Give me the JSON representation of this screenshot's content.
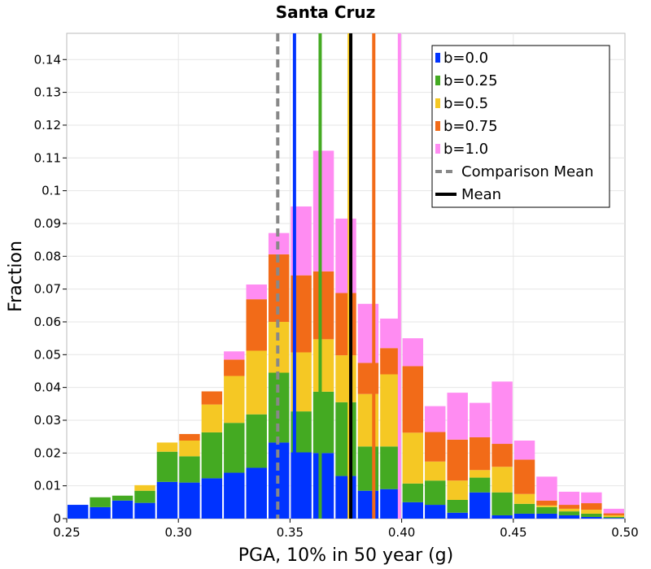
{
  "chart_data": {
    "type": "bar",
    "stacked": true,
    "title": "Santa Cruz",
    "xlabel": "PGA, 10% in 50 year (g)",
    "ylabel": "Fraction",
    "xlim": [
      0.25,
      0.5
    ],
    "ylim": [
      0,
      0.148
    ],
    "grid": true,
    "legend_position": "top-right",
    "x_ticks": [
      0.25,
      0.3,
      0.35,
      0.4,
      0.45,
      0.5
    ],
    "x_tick_labels": [
      "0.25",
      "0.30",
      "0.35",
      "0.40",
      "0.45",
      "0.50"
    ],
    "y_ticks": [
      0,
      0.01,
      0.02,
      0.03,
      0.04,
      0.05,
      0.06,
      0.07,
      0.08,
      0.09,
      0.1,
      0.11,
      0.12,
      0.13,
      0.14
    ],
    "y_tick_labels": [
      "0",
      "0.01",
      "0.02",
      "0.03",
      "0.04",
      "0.05",
      "0.06",
      "0.07",
      "0.08",
      "0.09",
      "0.1",
      "0.11",
      "0.12",
      "0.13",
      "0.14"
    ],
    "bin_width": 0.01,
    "bin_starts": [
      0.25,
      0.26,
      0.27,
      0.28,
      0.29,
      0.3,
      0.31,
      0.32,
      0.33,
      0.34,
      0.35,
      0.36,
      0.37,
      0.38,
      0.39,
      0.4,
      0.41,
      0.42,
      0.43,
      0.44,
      0.45,
      0.46,
      0.47,
      0.48,
      0.49
    ],
    "series": [
      {
        "name": "b=0.0",
        "color": "#0033ff",
        "values": [
          0.0042,
          0.0035,
          0.0055,
          0.0048,
          0.0112,
          0.011,
          0.0123,
          0.014,
          0.0155,
          0.0232,
          0.0202,
          0.02,
          0.013,
          0.0085,
          0.009,
          0.005,
          0.0042,
          0.0018,
          0.008,
          0.001,
          0.0015,
          0.0015,
          0.001,
          0.0005,
          0.0002
        ]
      },
      {
        "name": "b=0.25",
        "color": "#44aa22",
        "values": [
          0.0,
          0.003,
          0.0015,
          0.0037,
          0.0092,
          0.008,
          0.014,
          0.0152,
          0.0163,
          0.0213,
          0.0125,
          0.0187,
          0.0225,
          0.0135,
          0.013,
          0.0057,
          0.0074,
          0.0039,
          0.0045,
          0.007,
          0.003,
          0.002,
          0.0012,
          0.001,
          0.0003
        ]
      },
      {
        "name": "b=0.5",
        "color": "#f5c824",
        "values": [
          0.0,
          0.0,
          0.0,
          0.0017,
          0.0028,
          0.0048,
          0.0085,
          0.0143,
          0.0194,
          0.0155,
          0.018,
          0.016,
          0.0143,
          0.016,
          0.022,
          0.0155,
          0.0058,
          0.0059,
          0.0023,
          0.0078,
          0.003,
          0.0005,
          0.0008,
          0.0012,
          0.0005
        ]
      },
      {
        "name": "b=0.75",
        "color": "#f26b18",
        "values": [
          0.0,
          0.0,
          0.0,
          0.0,
          0.0,
          0.002,
          0.004,
          0.005,
          0.0157,
          0.0206,
          0.0235,
          0.0207,
          0.019,
          0.0095,
          0.008,
          0.0203,
          0.009,
          0.0125,
          0.01,
          0.007,
          0.0105,
          0.0015,
          0.0012,
          0.002,
          0.0006
        ]
      },
      {
        "name": "b=1.0",
        "color": "#ff8cf2",
        "values": [
          0.0,
          0.0,
          0.0,
          0.0,
          0.0,
          0.0,
          0.0,
          0.0025,
          0.0045,
          0.0065,
          0.021,
          0.0368,
          0.0227,
          0.018,
          0.009,
          0.0085,
          0.0079,
          0.0143,
          0.0105,
          0.019,
          0.0058,
          0.0073,
          0.004,
          0.0033,
          0.0014
        ]
      }
    ],
    "vertical_lines": [
      {
        "name": "comparison-mean-line",
        "label": "Comparison Mean",
        "x": 0.3445,
        "color": "#888888",
        "style": "dashed"
      },
      {
        "name": "mean-line-b0",
        "x": 0.352,
        "color": "#0033ff",
        "style": "solid"
      },
      {
        "name": "mean-line-b025",
        "x": 0.3635,
        "color": "#44aa22",
        "style": "solid"
      },
      {
        "name": "mean-line-b05",
        "x": 0.3765,
        "color": "#f5c824",
        "style": "solid"
      },
      {
        "name": "mean-line-b075",
        "x": 0.3875,
        "color": "#f26b18",
        "style": "solid"
      },
      {
        "name": "mean-line-b1",
        "x": 0.399,
        "color": "#ff8cf2",
        "style": "solid"
      },
      {
        "name": "mean-line",
        "label": "Mean",
        "x": 0.3772,
        "color": "#000000",
        "style": "solid"
      }
    ],
    "legend": [
      {
        "label": "b=0.0",
        "kind": "box",
        "color": "#0033ff"
      },
      {
        "label": "b=0.25",
        "kind": "box",
        "color": "#44aa22"
      },
      {
        "label": "b=0.5",
        "kind": "box",
        "color": "#f5c824"
      },
      {
        "label": "b=0.75",
        "kind": "box",
        "color": "#f26b18"
      },
      {
        "label": "b=1.0",
        "kind": "box",
        "color": "#ff8cf2"
      },
      {
        "label": "Comparison Mean",
        "kind": "dashed",
        "color": "#888888"
      },
      {
        "label": "Mean",
        "kind": "line",
        "color": "#000000"
      }
    ]
  }
}
